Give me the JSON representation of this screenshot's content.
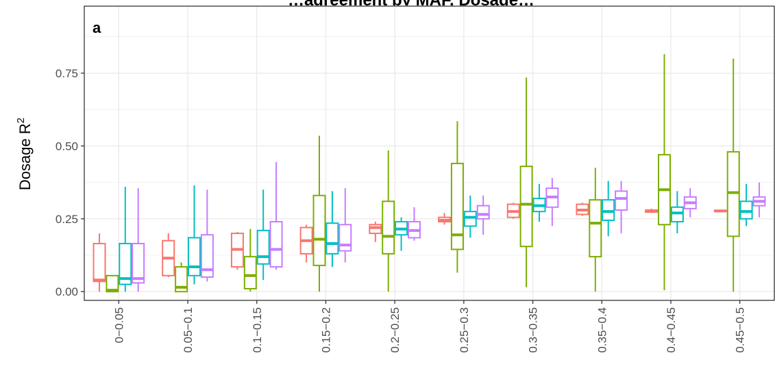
{
  "chart_data": {
    "type": "boxplot",
    "title": "",
    "top_text": "…agreement by MAF, Dosage…",
    "panel_label": "a",
    "xlabel": "",
    "ylabel": "Dosage R",
    "ylabel_superscript": "2",
    "ylim": [
      -0.03,
      0.98
    ],
    "yticks": [
      0.0,
      0.25,
      0.5,
      0.75
    ],
    "ytick_labels": [
      "0.00",
      "0.25",
      "0.50",
      "0.75"
    ],
    "grid": true,
    "legend": "none",
    "categories": [
      "0−0.05",
      "0.05−0.1",
      "0.1−0.15",
      "0.15−0.2",
      "0.2−0.25",
      "0.25−0.3",
      "0.3−0.35",
      "0.35−0.4",
      "0.4−0.45",
      "0.45−0.5"
    ],
    "series": [
      {
        "color": "#F8766D",
        "boxes": [
          {
            "min": 0.0,
            "q1": 0.035,
            "median": 0.04,
            "q3": 0.165,
            "max": 0.2
          },
          {
            "min": 0.05,
            "q1": 0.055,
            "median": 0.115,
            "q3": 0.175,
            "max": 0.2
          },
          {
            "min": 0.075,
            "q1": 0.085,
            "median": 0.145,
            "q3": 0.2,
            "max": 0.205
          },
          {
            "min": 0.1,
            "q1": 0.13,
            "median": 0.175,
            "q3": 0.22,
            "max": 0.23
          },
          {
            "min": 0.17,
            "q1": 0.2,
            "median": 0.22,
            "q3": 0.23,
            "max": 0.24
          },
          {
            "min": 0.23,
            "q1": 0.24,
            "median": 0.245,
            "q3": 0.255,
            "max": 0.27
          },
          {
            "min": 0.25,
            "q1": 0.255,
            "median": 0.275,
            "q3": 0.3,
            "max": 0.305
          },
          {
            "min": 0.26,
            "q1": 0.265,
            "median": 0.28,
            "q3": 0.3,
            "max": 0.305
          },
          {
            "min": 0.27,
            "q1": 0.273,
            "median": 0.277,
            "q3": 0.28,
            "max": 0.285
          },
          {
            "min": 0.274,
            "q1": 0.275,
            "median": 0.277,
            "q3": 0.279,
            "max": 0.28
          }
        ]
      },
      {
        "color": "#7CAE00",
        "boxes": [
          {
            "min": 0.0,
            "q1": 0.0,
            "median": 0.005,
            "q3": 0.055,
            "max": 0.055
          },
          {
            "min": 0.0,
            "q1": 0.0,
            "median": 0.015,
            "q3": 0.085,
            "max": 0.1
          },
          {
            "min": 0.0,
            "q1": 0.01,
            "median": 0.055,
            "q3": 0.12,
            "max": 0.215
          },
          {
            "min": 0.0,
            "q1": 0.09,
            "median": 0.18,
            "q3": 0.33,
            "max": 0.535
          },
          {
            "min": 0.0,
            "q1": 0.13,
            "median": 0.19,
            "q3": 0.31,
            "max": 0.485
          },
          {
            "min": 0.065,
            "q1": 0.145,
            "median": 0.195,
            "q3": 0.44,
            "max": 0.585
          },
          {
            "min": 0.015,
            "q1": 0.155,
            "median": 0.3,
            "q3": 0.43,
            "max": 0.735
          },
          {
            "min": 0.0,
            "q1": 0.12,
            "median": 0.235,
            "q3": 0.315,
            "max": 0.425
          },
          {
            "min": 0.005,
            "q1": 0.23,
            "median": 0.35,
            "q3": 0.47,
            "max": 0.815
          },
          {
            "min": 0.0,
            "q1": 0.19,
            "median": 0.34,
            "q3": 0.48,
            "max": 0.8
          }
        ]
      },
      {
        "color": "#00BFC4",
        "boxes": [
          {
            "min": 0.0,
            "q1": 0.025,
            "median": 0.045,
            "q3": 0.165,
            "max": 0.36
          },
          {
            "min": 0.025,
            "q1": 0.055,
            "median": 0.085,
            "q3": 0.185,
            "max": 0.365
          },
          {
            "min": 0.04,
            "q1": 0.095,
            "median": 0.12,
            "q3": 0.21,
            "max": 0.35
          },
          {
            "min": 0.085,
            "q1": 0.13,
            "median": 0.165,
            "q3": 0.235,
            "max": 0.345
          },
          {
            "min": 0.14,
            "q1": 0.195,
            "median": 0.215,
            "q3": 0.24,
            "max": 0.255
          },
          {
            "min": 0.185,
            "q1": 0.225,
            "median": 0.255,
            "q3": 0.275,
            "max": 0.33
          },
          {
            "min": 0.24,
            "q1": 0.275,
            "median": 0.295,
            "q3": 0.32,
            "max": 0.37
          },
          {
            "min": 0.19,
            "q1": 0.245,
            "median": 0.275,
            "q3": 0.315,
            "max": 0.38
          },
          {
            "min": 0.2,
            "q1": 0.24,
            "median": 0.27,
            "q3": 0.29,
            "max": 0.345
          },
          {
            "min": 0.225,
            "q1": 0.25,
            "median": 0.275,
            "q3": 0.31,
            "max": 0.37
          }
        ]
      },
      {
        "color": "#C77CFF",
        "boxes": [
          {
            "min": 0.0,
            "q1": 0.03,
            "median": 0.045,
            "q3": 0.165,
            "max": 0.355
          },
          {
            "min": 0.035,
            "q1": 0.05,
            "median": 0.075,
            "q3": 0.195,
            "max": 0.35
          },
          {
            "min": 0.075,
            "q1": 0.085,
            "median": 0.145,
            "q3": 0.24,
            "max": 0.445
          },
          {
            "min": 0.1,
            "q1": 0.14,
            "median": 0.16,
            "q3": 0.23,
            "max": 0.355
          },
          {
            "min": 0.175,
            "q1": 0.185,
            "median": 0.21,
            "q3": 0.24,
            "max": 0.29
          },
          {
            "min": 0.195,
            "q1": 0.25,
            "median": 0.265,
            "q3": 0.295,
            "max": 0.33
          },
          {
            "min": 0.225,
            "q1": 0.29,
            "median": 0.325,
            "q3": 0.355,
            "max": 0.39
          },
          {
            "min": 0.2,
            "q1": 0.28,
            "median": 0.32,
            "q3": 0.345,
            "max": 0.38
          },
          {
            "min": 0.255,
            "q1": 0.285,
            "median": 0.305,
            "q3": 0.325,
            "max": 0.355
          },
          {
            "min": 0.255,
            "q1": 0.295,
            "median": 0.31,
            "q3": 0.325,
            "max": 0.375
          }
        ]
      }
    ]
  }
}
